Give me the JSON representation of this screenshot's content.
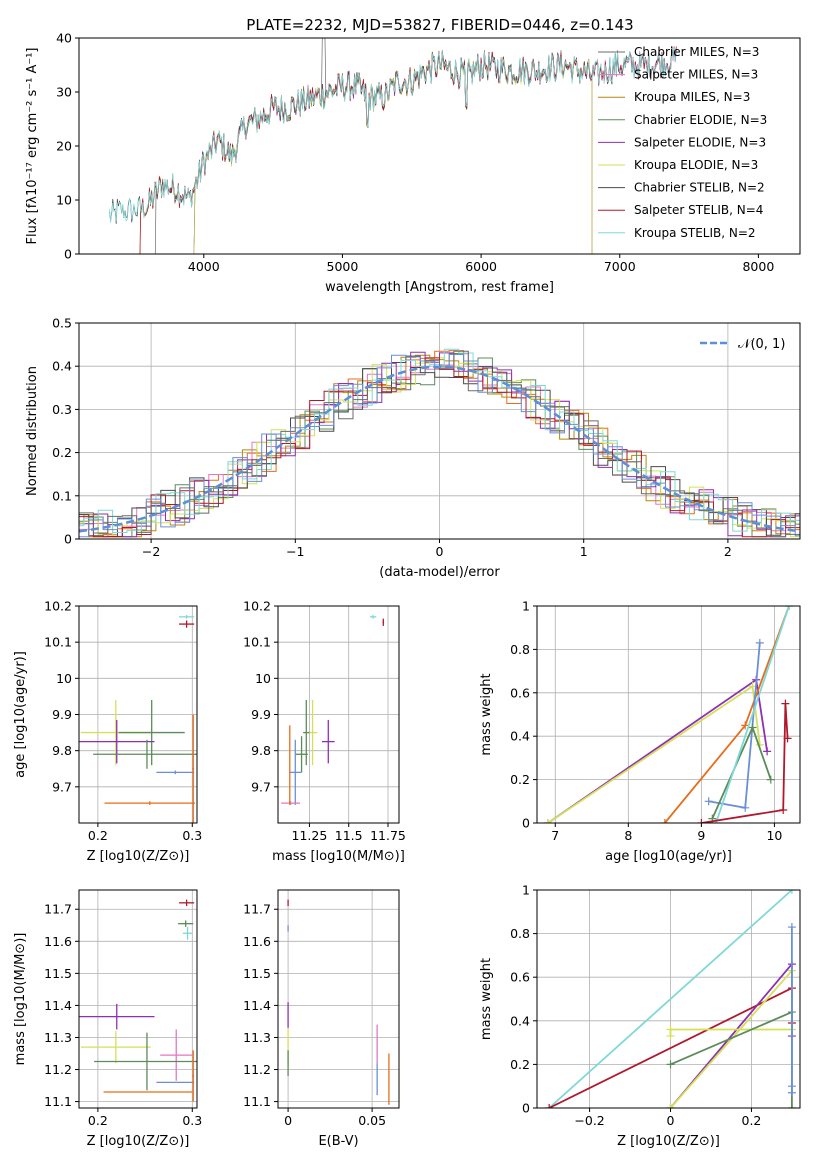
{
  "title": "PLATE=2232, MJD=53827, FIBERID=0446, z=0.143",
  "colors": [
    "#6b6b6b",
    "#e377c2",
    "#b8860b",
    "#5b8c5a",
    "#8e2fb5",
    "#d4e157",
    "#4a4a4a",
    "#b2182b",
    "#7fd8d8",
    "#e86c1c",
    "#6a8fd8"
  ],
  "chart_data": [
    {
      "id": "spectrum",
      "type": "line",
      "xlabel": "wavelength [Angstrom, rest frame]",
      "ylabel": "Flux [fλ10⁻¹⁷ erg cm⁻² s⁻¹ A⁻¹]",
      "xlim": [
        3100,
        8300
      ],
      "ylim": [
        0,
        40
      ],
      "xticks": [
        4000,
        5000,
        6000,
        7000,
        8000
      ],
      "yticks": [
        0,
        10,
        20,
        30,
        40
      ],
      "grid": false,
      "legend_position": "top-right",
      "series": [
        {
          "name": "Chabrier MILES, N_SSP=3",
          "x_range": [
            3650,
            7410
          ]
        },
        {
          "name": "Salpeter MILES, N_SSP=3",
          "x_range": [
            3930,
            7410
          ]
        },
        {
          "name": "Kroupa MILES, N_SSP=3",
          "x_range": [
            3540,
            6800
          ]
        },
        {
          "name": "Chabrier ELODIE, N_SSP=3",
          "x_range": [
            3930,
            6800
          ]
        },
        {
          "name": "Salpeter ELODIE, N_SSP=3",
          "x_range": [
            3930,
            6800
          ]
        },
        {
          "name": "Kroupa ELODIE, N_SSP=3",
          "x_range": [
            3930,
            6800
          ]
        },
        {
          "name": "Chabrier STELIB, N_SSP=2",
          "x_range": [
            3320,
            7410
          ]
        },
        {
          "name": "Salpeter STELIB, N_SSP=4",
          "x_range": [
            3540,
            7410
          ]
        },
        {
          "name": "Kroupa STELIB, N_SSP=2",
          "x_range": [
            3320,
            7410
          ]
        }
      ],
      "continuum": {
        "x": [
          3320,
          3400,
          3500,
          3600,
          3700,
          3800,
          3900,
          4000,
          4100,
          4200,
          4300,
          4400,
          4500,
          4600,
          4700,
          4800,
          4900,
          5000,
          5100,
          5200,
          5300,
          5400,
          5500,
          5600,
          5700,
          5800,
          5900,
          6000,
          6200,
          6400,
          6600,
          6800,
          7000,
          7200,
          7410
        ],
        "y": [
          7,
          8,
          8,
          9,
          13,
          12,
          10,
          17,
          21,
          18,
          24,
          25,
          27,
          27,
          28,
          29,
          30,
          31,
          31,
          29,
          29,
          32,
          32,
          34,
          35,
          34,
          33,
          35,
          34,
          34,
          35,
          33,
          35,
          35,
          36
        ]
      }
    },
    {
      "id": "residuals",
      "type": "step",
      "xlabel": "(data-model)/error",
      "ylabel": "Normed distribution",
      "xlim": [
        -2.5,
        2.5
      ],
      "ylim": [
        0,
        0.5
      ],
      "xticks": [
        -2,
        -1,
        0,
        1,
        2
      ],
      "yticks": [
        0.0,
        0.1,
        0.2,
        0.3,
        0.4,
        0.5
      ],
      "grid": true,
      "legend_position": "top-right",
      "reference": {
        "name": "𝒩(0, 1)",
        "mean": 0,
        "sigma": 1
      }
    },
    {
      "id": "age-vs-Z",
      "type": "errorbar",
      "xlabel": "Z [log10(Z/Z⊙)]",
      "ylabel": "age  [log10(age/yr)]",
      "xlim": [
        0.18,
        0.305
      ],
      "ylim": [
        9.6,
        10.2
      ],
      "xticks": [
        0.2,
        0.3
      ],
      "yticks": [
        9.7,
        9.8,
        9.9,
        10.0,
        10.1,
        10.2
      ],
      "points": [
        {
          "x": 0.294,
          "y": 10.15,
          "xerr": 0.008,
          "yerr": 0.01,
          "c": 7
        },
        {
          "x": 0.294,
          "y": 10.17,
          "xerr": 0.008,
          "yerr": 0.005,
          "c": 8
        },
        {
          "x": 0.219,
          "y": 9.85,
          "xerr": 0.037,
          "yerr": 0.09,
          "c": 5
        },
        {
          "x": 0.257,
          "y": 9.85,
          "xerr": 0.035,
          "yerr": 0.09,
          "c": 3
        },
        {
          "x": 0.22,
          "y": 9.825,
          "xerr": 0.04,
          "yerr": 0.06,
          "c": 4
        },
        {
          "x": 0.252,
          "y": 9.79,
          "xerr": 0.057,
          "yerr": 0.04,
          "c": 3
        },
        {
          "x": 0.282,
          "y": 9.74,
          "xerr": 0.02,
          "yerr": 0.005,
          "c": 10
        },
        {
          "x": 0.255,
          "y": 9.655,
          "xerr": 0.048,
          "yerr": 0.005,
          "c": 9
        },
        {
          "x": 0.301,
          "y": 9.75,
          "xerr": 0.001,
          "yerr": 0.15,
          "c": 9
        }
      ]
    },
    {
      "id": "age-vs-mass",
      "type": "errorbar",
      "xlabel": "mass [log10(M/M⊙)]",
      "ylabel": "",
      "xlim": [
        11.05,
        11.82
      ],
      "ylim": [
        9.6,
        10.2
      ],
      "xticks": [
        11.25,
        11.5,
        11.75
      ],
      "yticks": [
        9.7,
        9.8,
        9.9,
        10.0,
        10.1,
        10.2
      ],
      "points": [
        {
          "x": 11.72,
          "y": 10.155,
          "xerr": 0.005,
          "yerr": 0.01,
          "c": 7
        },
        {
          "x": 11.655,
          "y": 10.17,
          "xerr": 0.02,
          "yerr": 0.005,
          "c": 8
        },
        {
          "x": 11.37,
          "y": 9.825,
          "xerr": 0.04,
          "yerr": 0.06,
          "c": 4
        },
        {
          "x": 11.27,
          "y": 9.85,
          "xerr": 0.03,
          "yerr": 0.09,
          "c": 5
        },
        {
          "x": 11.23,
          "y": 9.85,
          "xerr": 0.02,
          "yerr": 0.09,
          "c": 3
        },
        {
          "x": 11.2,
          "y": 9.79,
          "xerr": 0.04,
          "yerr": 0.05,
          "c": 3
        },
        {
          "x": 11.16,
          "y": 9.74,
          "xerr": 0.04,
          "yerr": 0.09,
          "c": 10
        },
        {
          "x": 11.13,
          "y": 9.655,
          "xerr": 0.06,
          "yerr": 0.005,
          "c": 1
        },
        {
          "x": 11.125,
          "y": 9.76,
          "xerr": 0.003,
          "yerr": 0.11,
          "c": 9
        }
      ]
    },
    {
      "id": "massweight-vs-age",
      "type": "line",
      "xlabel": "age  [log10(age/yr)]",
      "ylabel": "mass weight",
      "xlim": [
        6.75,
        10.35
      ],
      "ylim": [
        0,
        1.0
      ],
      "xticks": [
        7,
        8,
        9,
        10
      ],
      "yticks": [
        0.0,
        0.2,
        0.4,
        0.6,
        0.8,
        1.0
      ],
      "grid": true,
      "series": [
        {
          "c": 4,
          "points": [
            [
              6.9,
              0.0
            ],
            [
              9.75,
              0.66
            ],
            [
              9.9,
              0.33
            ]
          ]
        },
        {
          "c": 5,
          "points": [
            [
              6.9,
              0.0
            ],
            [
              9.7,
              0.63
            ],
            [
              9.8,
              0.36
            ]
          ]
        },
        {
          "c": 9,
          "points": [
            [
              8.5,
              0.0
            ],
            [
              9.6,
              0.45
            ],
            [
              10.2,
              1.0
            ]
          ]
        },
        {
          "c": 10,
          "points": [
            [
              9.1,
              0.1
            ],
            [
              9.6,
              0.07
            ],
            [
              9.8,
              0.83
            ]
          ]
        },
        {
          "c": 3,
          "points": [
            [
              9.15,
              0.02
            ],
            [
              9.7,
              0.44
            ],
            [
              9.95,
              0.2
            ]
          ]
        },
        {
          "c": 8,
          "points": [
            [
              9.2,
              0.0
            ],
            [
              10.2,
              1.0
            ]
          ]
        },
        {
          "c": 7,
          "points": [
            [
              9.0,
              0.0
            ],
            [
              10.12,
              0.06
            ],
            [
              10.15,
              0.55
            ],
            [
              10.18,
              0.39
            ]
          ]
        }
      ]
    },
    {
      "id": "mass-vs-Z",
      "type": "errorbar",
      "xlabel": "Z [log10(Z/Z⊙)]",
      "ylabel": "mass [log10(M/M⊙)]",
      "xlim": [
        0.18,
        0.305
      ],
      "ylim": [
        11.08,
        11.76
      ],
      "xticks": [
        0.2,
        0.3
      ],
      "yticks": [
        11.1,
        11.2,
        11.3,
        11.4,
        11.5,
        11.6,
        11.7
      ],
      "points": [
        {
          "x": 0.294,
          "y": 11.72,
          "xerr": 0.008,
          "yerr": 0.01,
          "c": 7
        },
        {
          "x": 0.293,
          "y": 11.655,
          "xerr": 0.008,
          "yerr": 0.01,
          "c": 3
        },
        {
          "x": 0.295,
          "y": 11.625,
          "xerr": 0.005,
          "yerr": 0.02,
          "c": 8
        },
        {
          "x": 0.22,
          "y": 11.365,
          "xerr": 0.04,
          "yerr": 0.04,
          "c": 4
        },
        {
          "x": 0.283,
          "y": 11.245,
          "xerr": 0.017,
          "yerr": 0.08,
          "c": 1
        },
        {
          "x": 0.219,
          "y": 11.27,
          "xerr": 0.037,
          "yerr": 0.05,
          "c": 5
        },
        {
          "x": 0.252,
          "y": 11.225,
          "xerr": 0.056,
          "yerr": 0.09,
          "c": 3
        },
        {
          "x": 0.282,
          "y": 11.16,
          "xerr": 0.02,
          "yerr": 0.0,
          "c": 10
        },
        {
          "x": 0.253,
          "y": 11.13,
          "xerr": 0.047,
          "yerr": 0.0,
          "c": 9
        },
        {
          "x": 0.301,
          "y": 11.18,
          "xerr": 0.001,
          "yerr": 0.08,
          "c": 9
        }
      ]
    },
    {
      "id": "mass-vs-EBV",
      "type": "errorbar",
      "xlabel": "E(B-V)",
      "ylabel": "",
      "xlim": [
        -0.006,
        0.066
      ],
      "ylim": [
        11.08,
        11.76
      ],
      "xticks": [
        0.0,
        0.05
      ],
      "yticks": [
        11.1,
        11.2,
        11.3,
        11.4,
        11.5,
        11.6,
        11.7
      ],
      "points": [
        {
          "x": 0.0,
          "y": 11.72,
          "xerr": 0,
          "yerr": 0.01,
          "c": 7
        },
        {
          "x": 0.0,
          "y": 11.64,
          "xerr": 0,
          "yerr": 0.01,
          "c": 10
        },
        {
          "x": 0.0,
          "y": 11.37,
          "xerr": 0,
          "yerr": 0.04,
          "c": 4
        },
        {
          "x": 0.0,
          "y": 11.27,
          "xerr": 0,
          "yerr": 0.06,
          "c": 5
        },
        {
          "x": 0.0,
          "y": 11.22,
          "xerr": 0,
          "yerr": 0.04,
          "c": 3
        },
        {
          "x": 0.053,
          "y": 11.28,
          "xerr": 0,
          "yerr": 0.06,
          "c": 1
        },
        {
          "x": 0.053,
          "y": 11.17,
          "xerr": 0,
          "yerr": 0.05,
          "c": 10
        },
        {
          "x": 0.06,
          "y": 11.17,
          "xerr": 0,
          "yerr": 0.08,
          "c": 9
        }
      ]
    },
    {
      "id": "massweight-vs-Z",
      "type": "line",
      "xlabel": "Z [log10(Z/Z⊙)]",
      "ylabel": "mass weight",
      "xlim": [
        -0.33,
        0.32
      ],
      "ylim": [
        0,
        1.0
      ],
      "xticks": [
        -0.2,
        0.0,
        0.2
      ],
      "yticks": [
        0.0,
        0.2,
        0.4,
        0.6,
        0.8,
        1.0
      ],
      "grid": true,
      "series": [
        {
          "c": 8,
          "points": [
            [
              -0.3,
              0.0
            ],
            [
              0.3,
              1.0
            ]
          ]
        },
        {
          "c": 7,
          "points": [
            [
              -0.3,
              0.0
            ],
            [
              0.3,
              0.55
            ],
            [
              0.3,
              0.39
            ]
          ]
        },
        {
          "c": 4,
          "points": [
            [
              0.0,
              0.0
            ],
            [
              0.3,
              0.66
            ],
            [
              0.3,
              0.33
            ]
          ]
        },
        {
          "c": 5,
          "points": [
            [
              0.0,
              0.0
            ],
            [
              0.3,
              0.63
            ],
            [
              0.3,
              0.36
            ],
            [
              0.0,
              0.36
            ],
            [
              0.0,
              0.33
            ]
          ]
        },
        {
          "c": 3,
          "points": [
            [
              0.0,
              0.2
            ],
            [
              0.3,
              0.44
            ],
            [
              0.3,
              0.0
            ]
          ]
        },
        {
          "c": 10,
          "points": [
            [
              0.3,
              0.83
            ],
            [
              0.3,
              0.07
            ],
            [
              0.3,
              0.1
            ]
          ]
        }
      ]
    }
  ]
}
